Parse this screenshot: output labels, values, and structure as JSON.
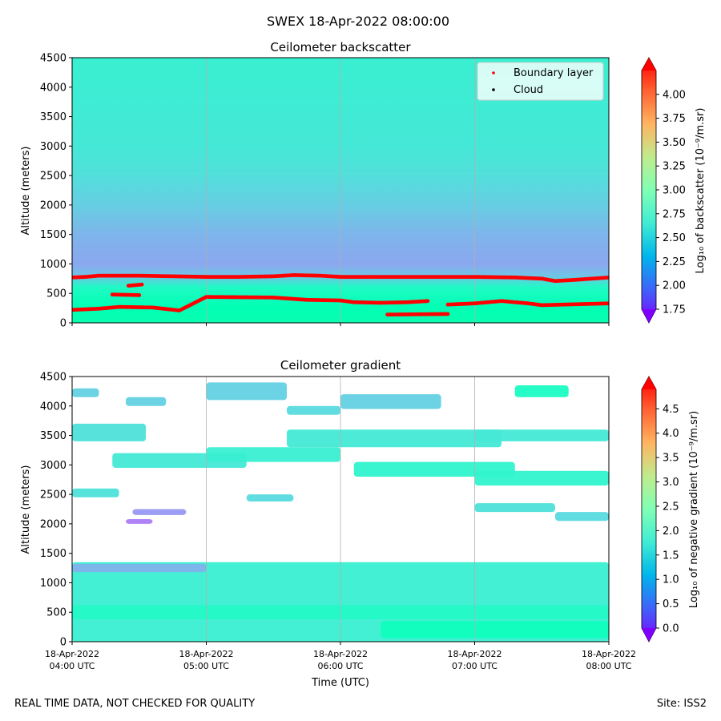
{
  "figure": {
    "suptitle": "SWEX 18-Apr-2022 08:00:00",
    "footer_left": "REAL TIME DATA, NOT CHECKED FOR QUALITY",
    "footer_right": "Site: ISS2"
  },
  "chart_data": [
    {
      "type": "heatmap",
      "title": "Ceilometer backscatter",
      "xlabel": "",
      "ylabel": "Altitude (meters)",
      "ylim": [
        0,
        4500
      ],
      "yticks": [
        "0",
        "500",
        "1000",
        "1500",
        "2000",
        "2500",
        "3000",
        "3500",
        "4000",
        "4500"
      ],
      "xlim_hours": [
        4,
        8
      ],
      "grid": "vertical at each hour",
      "colorbar": {
        "label": "Log₁₀ of backscatter (10⁻⁹/m.sr)",
        "range": [
          1.75,
          4.25
        ],
        "ticks": [
          "1.75",
          "2.00",
          "2.25",
          "2.50",
          "2.75",
          "3.00",
          "3.25",
          "3.50",
          "3.75",
          "4.00"
        ],
        "colormap": "rainbow"
      },
      "field_profile": [
        {
          "altitude": 0,
          "value": 3.05
        },
        {
          "altitude": 250,
          "value": 3.0
        },
        {
          "altitude": 600,
          "value": 2.85
        },
        {
          "altitude": 800,
          "value": 2.45
        },
        {
          "altitude": 1000,
          "value": 2.32
        },
        {
          "altitude": 1500,
          "value": 2.38
        },
        {
          "altitude": 2000,
          "value": 2.5
        },
        {
          "altitude": 2500,
          "value": 2.6
        },
        {
          "altitude": 3000,
          "value": 2.66
        },
        {
          "altitude": 4500,
          "value": 2.72
        }
      ],
      "legend": {
        "position": "top-right",
        "entries": [
          {
            "label": "Boundary layer",
            "color": "#ff0000"
          },
          {
            "label": "Cloud",
            "color": "#000000"
          }
        ]
      },
      "boundary_layer_series": [
        {
          "name": "upper",
          "points": [
            [
              4.0,
              770
            ],
            [
              4.1,
              780
            ],
            [
              4.2,
              800
            ],
            [
              4.5,
              800
            ],
            [
              4.75,
              790
            ],
            [
              5.0,
              780
            ],
            [
              5.25,
              780
            ],
            [
              5.5,
              790
            ],
            [
              5.65,
              810
            ],
            [
              5.85,
              800
            ],
            [
              6.0,
              780
            ],
            [
              6.5,
              780
            ],
            [
              7.0,
              780
            ],
            [
              7.3,
              770
            ],
            [
              7.5,
              750
            ],
            [
              7.6,
              710
            ],
            [
              7.75,
              730
            ],
            [
              8.0,
              770
            ]
          ]
        },
        {
          "name": "lower",
          "points": [
            [
              4.0,
              220
            ],
            [
              4.2,
              240
            ],
            [
              4.35,
              270
            ],
            [
              4.6,
              260
            ],
            [
              4.8,
              210
            ],
            [
              5.0,
              440
            ],
            [
              5.5,
              430
            ],
            [
              5.75,
              390
            ],
            [
              6.0,
              380
            ],
            [
              6.1,
              350
            ],
            [
              6.3,
              340
            ],
            [
              6.5,
              350
            ],
            [
              6.65,
              370
            ]
          ]
        },
        {
          "name": "segment-a",
          "points": [
            [
              4.3,
              480
            ],
            [
              4.5,
              470
            ]
          ]
        },
        {
          "name": "segment-b",
          "points": [
            [
              4.42,
              630
            ],
            [
              4.52,
              650
            ]
          ]
        },
        {
          "name": "segment-c",
          "points": [
            [
              6.35,
              140
            ],
            [
              6.8,
              150
            ]
          ]
        },
        {
          "name": "segment-d",
          "points": [
            [
              6.8,
              310
            ],
            [
              7.0,
              330
            ],
            [
              7.2,
              370
            ],
            [
              7.4,
              330
            ],
            [
              7.5,
              300
            ],
            [
              8.0,
              330
            ]
          ]
        }
      ]
    },
    {
      "type": "heatmap",
      "title": "Ceilometer gradient",
      "xlabel": "Time (UTC)",
      "ylabel": "Altitude (meters)",
      "ylim": [
        0,
        4500
      ],
      "yticks": [
        "0",
        "500",
        "1000",
        "1500",
        "2000",
        "2500",
        "3000",
        "3500",
        "4000",
        "4500"
      ],
      "xlim_hours": [
        4,
        8
      ],
      "xticks": [
        {
          "hour": 4,
          "line1": "18-Apr-2022",
          "line2": "04:00 UTC"
        },
        {
          "hour": 5,
          "line1": "18-Apr-2022",
          "line2": "05:00 UTC"
        },
        {
          "hour": 6,
          "line1": "18-Apr-2022",
          "line2": "06:00 UTC"
        },
        {
          "hour": 7,
          "line1": "18-Apr-2022",
          "line2": "07:00 UTC"
        },
        {
          "hour": 8,
          "line1": "18-Apr-2022",
          "line2": "08:00 UTC"
        }
      ],
      "colorbar": {
        "label": "Log₁₀ of negative gradient (10⁻⁹/m.sr)",
        "range": [
          0.0,
          4.9
        ],
        "ticks": [
          "0.0",
          "0.5",
          "1.0",
          "1.5",
          "2.0",
          "2.5",
          "3.0",
          "3.5",
          "4.0",
          "4.5"
        ],
        "colormap": "rainbow"
      },
      "layer_bands": [
        {
          "t0": 4.0,
          "t1": 8.0,
          "z0": 0,
          "z1": 1350,
          "value": 1.9
        },
        {
          "t0": 4.0,
          "t1": 8.0,
          "z0": 380,
          "z1": 620,
          "value": 2.1
        },
        {
          "t0": 6.3,
          "t1": 8.0,
          "z0": 60,
          "z1": 350,
          "value": 2.3
        },
        {
          "t0": 4.0,
          "t1": 5.0,
          "z0": 1180,
          "z1": 1320,
          "value": 1.2
        },
        {
          "t0": 4.0,
          "t1": 4.55,
          "z0": 3400,
          "z1": 3700,
          "value": 1.7
        },
        {
          "t0": 4.3,
          "t1": 5.3,
          "z0": 2950,
          "z1": 3200,
          "value": 1.8
        },
        {
          "t0": 5.0,
          "t1": 6.0,
          "z0": 3050,
          "z1": 3300,
          "value": 1.9
        },
        {
          "t0": 5.6,
          "t1": 7.2,
          "z0": 3300,
          "z1": 3600,
          "value": 1.8
        },
        {
          "t0": 6.1,
          "t1": 7.3,
          "z0": 2800,
          "z1": 3050,
          "value": 2.0
        },
        {
          "t0": 7.0,
          "t1": 8.0,
          "z0": 2650,
          "z1": 2900,
          "value": 2.0
        },
        {
          "t0": 7.0,
          "t1": 8.0,
          "z0": 3400,
          "z1": 3600,
          "value": 1.8
        },
        {
          "t0": 7.0,
          "t1": 7.6,
          "z0": 2200,
          "z1": 2350,
          "value": 1.7
        },
        {
          "t0": 7.6,
          "t1": 8.0,
          "z0": 2050,
          "z1": 2200,
          "value": 1.6
        },
        {
          "t0": 4.0,
          "t1": 4.35,
          "z0": 2450,
          "z1": 2600,
          "value": 1.7
        },
        {
          "t0": 5.3,
          "t1": 5.65,
          "z0": 2380,
          "z1": 2500,
          "value": 1.6
        },
        {
          "t0": 5.0,
          "t1": 5.6,
          "z0": 4100,
          "z1": 4400,
          "value": 1.5
        },
        {
          "t0": 5.6,
          "t1": 6.0,
          "z0": 3850,
          "z1": 4000,
          "value": 1.6
        },
        {
          "t0": 6.0,
          "t1": 6.75,
          "z0": 3950,
          "z1": 4200,
          "value": 1.5
        },
        {
          "t0": 7.3,
          "t1": 7.7,
          "z0": 4150,
          "z1": 4350,
          "value": 2.2
        },
        {
          "t0": 4.0,
          "t1": 4.2,
          "z0": 4150,
          "z1": 4300,
          "value": 1.5
        },
        {
          "t0": 4.4,
          "t1": 4.7,
          "z0": 4000,
          "z1": 4150,
          "value": 1.5
        },
        {
          "t0": 4.45,
          "t1": 4.85,
          "z0": 2150,
          "z1": 2250,
          "value": 1.0
        },
        {
          "t0": 4.4,
          "t1": 4.6,
          "z0": 2000,
          "z1": 2080,
          "value": 0.8
        }
      ]
    }
  ]
}
